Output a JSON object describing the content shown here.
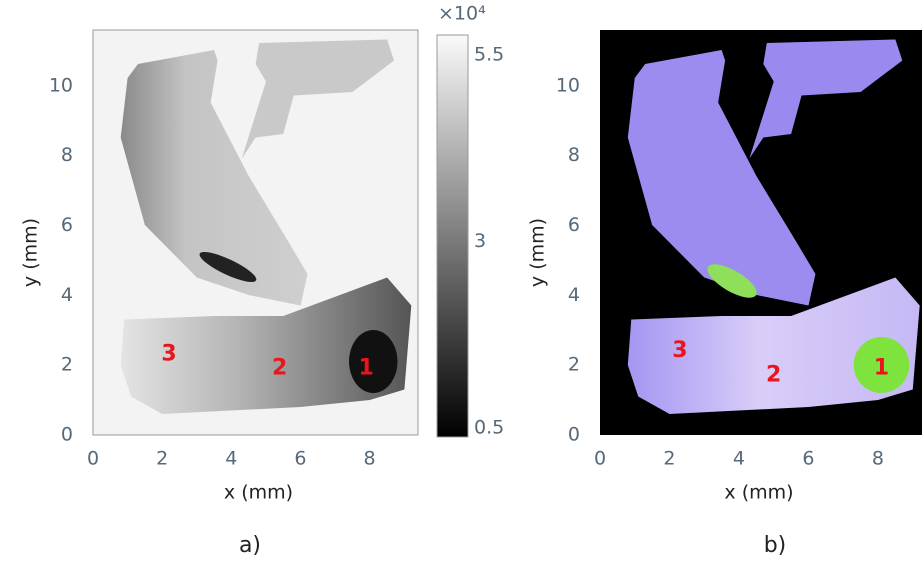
{
  "panels": [
    {
      "xlabel": "x (mm)",
      "ylabel": "y (mm)",
      "xlim": [
        0,
        9.4
      ],
      "ylim": [
        0,
        11.6
      ],
      "xticks": [
        0,
        2,
        4,
        6,
        8
      ],
      "yticks": [
        0,
        2,
        4,
        6,
        8,
        10
      ],
      "annotations": [
        {
          "text": "3",
          "x": 2.2,
          "y": 2.3
        },
        {
          "text": "2",
          "x": 5.4,
          "y": 1.9
        },
        {
          "text": "1",
          "x": 7.9,
          "y": 1.9
        }
      ],
      "colorbar": {
        "exponent": "×10⁴",
        "lim": [
          0.38,
          5.77
        ],
        "ticks": [
          5.5,
          3,
          0.5
        ]
      },
      "caption": "a)"
    },
    {
      "xlabel": "x (mm)",
      "ylabel": "y (mm)",
      "xlim": [
        0,
        9.27
      ],
      "ylim": [
        0,
        11.6
      ],
      "xticks": [
        0,
        2,
        4,
        6,
        8
      ],
      "yticks": [
        0,
        2,
        4,
        6,
        8,
        10
      ],
      "annotations": [
        {
          "text": "3",
          "x": 2.3,
          "y": 2.4
        },
        {
          "text": "2",
          "x": 5.0,
          "y": 1.7
        },
        {
          "text": "1",
          "x": 8.1,
          "y": 1.9
        }
      ],
      "caption": "b)"
    }
  ]
}
